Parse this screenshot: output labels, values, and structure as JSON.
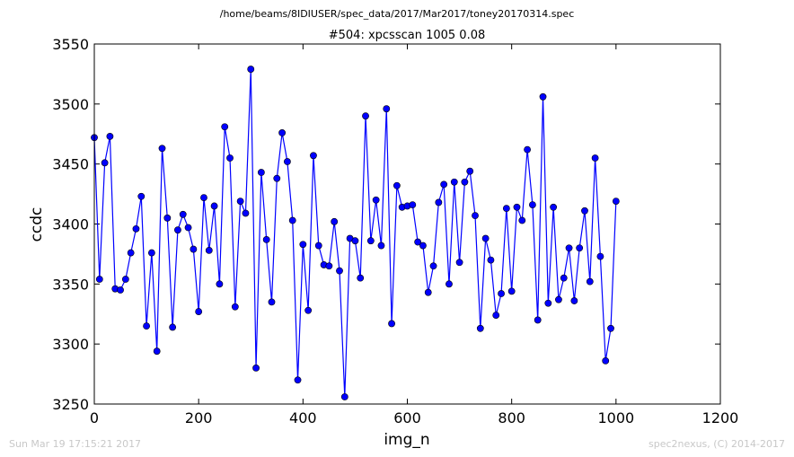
{
  "figure": {
    "suptitle": "/home/beams/8IDIUSER/spec_data/2017/Mar2017/toney20170314.spec",
    "footer_left": "Sun Mar 19 17:15:21 2017",
    "footer_right": "spec2nexus, (C) 2014-2017"
  },
  "chart_data": {
    "type": "line",
    "title": "#504: xpcsscan 1005 0.08",
    "xlabel": "img_n",
    "ylabel": "ccdc",
    "xlim": [
      0,
      1200
    ],
    "ylim": [
      3250,
      3550
    ],
    "xticks": [
      0,
      200,
      400,
      600,
      800,
      1000,
      1200
    ],
    "yticks": [
      3250,
      3300,
      3350,
      3400,
      3450,
      3500,
      3550
    ],
    "grid": false,
    "line_color": "#0000ff",
    "marker": "circle",
    "series": [
      {
        "x": [
          0,
          10,
          20,
          30,
          40,
          50,
          60,
          70,
          80,
          90,
          100,
          110,
          120,
          130,
          140,
          150,
          160,
          170,
          180,
          190,
          200,
          210,
          220,
          230,
          240,
          250,
          260,
          270,
          280,
          290,
          300,
          310,
          320,
          330,
          340,
          350,
          360,
          370,
          380,
          390,
          400,
          410,
          420,
          430,
          440,
          450,
          460,
          470,
          480,
          490,
          500,
          510,
          520,
          530,
          540,
          550,
          560,
          570,
          580,
          590,
          600,
          610,
          620,
          630,
          640,
          650,
          660,
          670,
          680,
          690,
          700,
          710,
          720,
          730,
          740,
          750,
          760,
          770,
          780,
          790,
          800,
          810,
          820,
          830,
          840,
          850,
          860,
          870,
          880,
          890,
          900,
          910,
          920,
          930,
          940,
          950,
          960,
          970,
          980,
          990,
          1000
        ],
        "y": [
          3472,
          3354,
          3451,
          3473,
          3346,
          3345,
          3354,
          3376,
          3396,
          3423,
          3315,
          3376,
          3294,
          3463,
          3405,
          3314,
          3395,
          3408,
          3397,
          3379,
          3327,
          3422,
          3378,
          3415,
          3350,
          3481,
          3455,
          3331,
          3419,
          3409,
          3529,
          3280,
          3443,
          3387,
          3335,
          3438,
          3476,
          3452,
          3403,
          3270,
          3383,
          3328,
          3457,
          3382,
          3366,
          3365,
          3402,
          3361,
          3256,
          3388,
          3386,
          3355,
          3490,
          3386,
          3420,
          3382,
          3496,
          3317,
          3432,
          3414,
          3415,
          3416,
          3385,
          3382,
          3343,
          3365,
          3418,
          3433,
          3350,
          3435,
          3368,
          3435,
          3444,
          3407,
          3313,
          3388,
          3370,
          3324,
          3342,
          3413,
          3344,
          3414,
          3403,
          3462,
          3416,
          3320,
          3506,
          3334,
          3414,
          3337,
          3355,
          3380,
          3336,
          3380,
          3411,
          3352,
          3455,
          3373,
          3286,
          3313,
          3419
        ]
      }
    ]
  }
}
